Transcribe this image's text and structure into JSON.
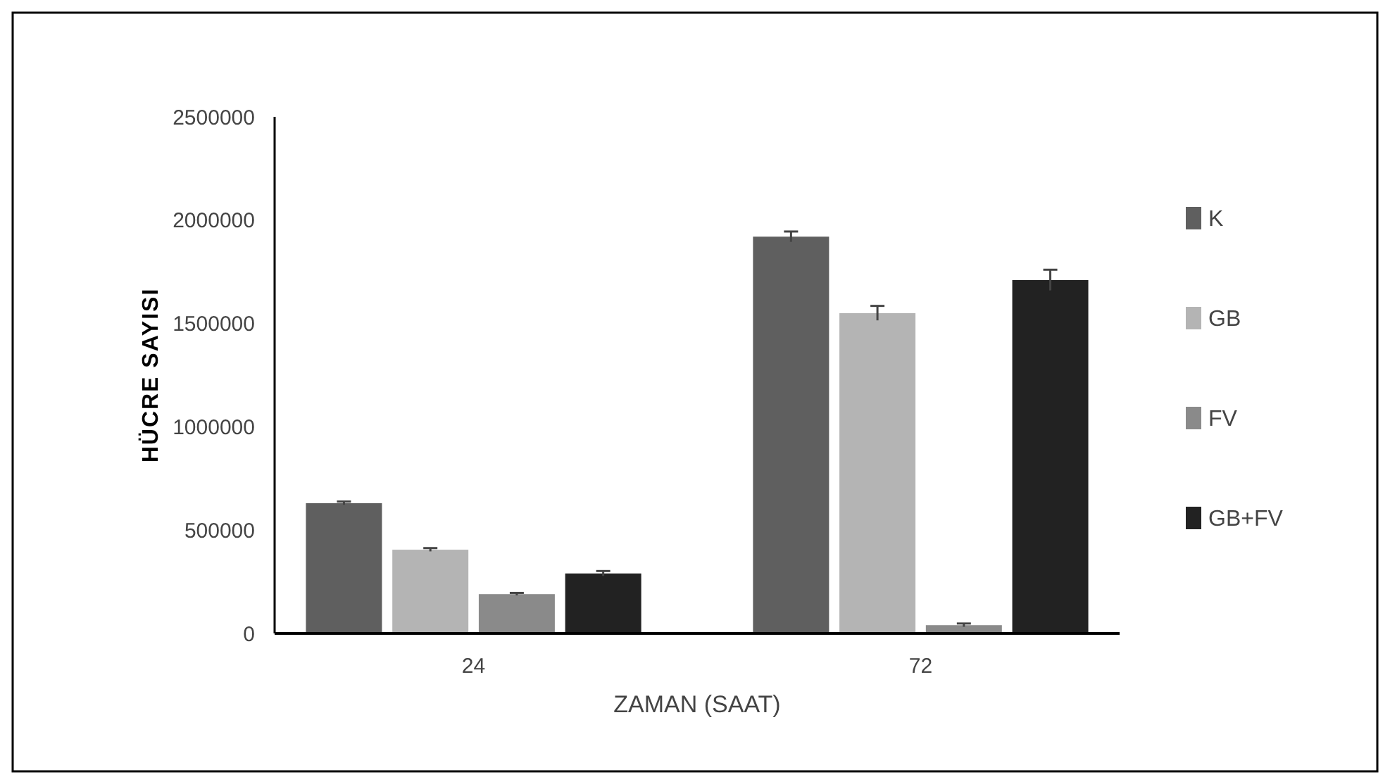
{
  "chart_data": {
    "type": "bar",
    "xlabel": "ZAMAN (SAAT)",
    "ylabel": "HÜCRE SAYISI",
    "categories": [
      "24",
      "72"
    ],
    "series": [
      {
        "name": "K",
        "color": "#5f5f5f",
        "values": [
          630000,
          1920000
        ],
        "errors": [
          8000,
          25000
        ]
      },
      {
        "name": "GB",
        "color": "#b4b4b4",
        "values": [
          405000,
          1550000
        ],
        "errors": [
          8000,
          35000
        ]
      },
      {
        "name": "FV",
        "color": "#8a8a8a",
        "values": [
          190000,
          40000
        ],
        "errors": [
          6000,
          8000
        ]
      },
      {
        "name": "GB+FV",
        "color": "#222222",
        "values": [
          290000,
          1710000
        ],
        "errors": [
          12000,
          50000
        ]
      }
    ],
    "ylim": [
      0,
      2500000
    ],
    "yticks": [
      0,
      500000,
      1000000,
      1500000,
      2000000,
      2500000
    ],
    "grid": false,
    "legend": "right"
  }
}
